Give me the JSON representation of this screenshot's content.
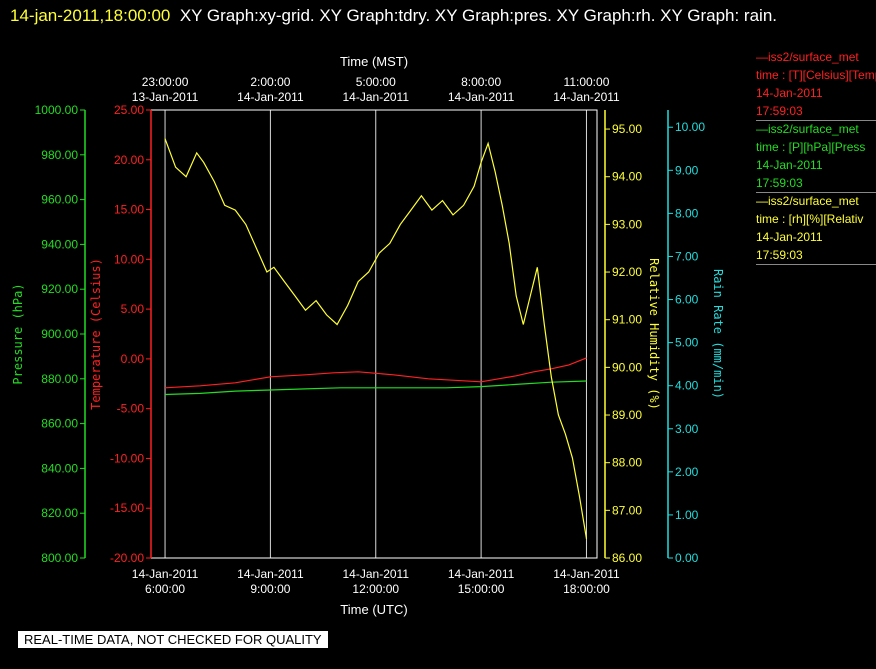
{
  "header": {
    "timestamp": "14-jan-2011,18:00:00",
    "graphs_text": "XY Graph:xy-grid.  XY Graph:tdry.  XY Graph:pres.  XY Graph:rh.  XY Graph: rain."
  },
  "colors": {
    "temperature": "#ff2020",
    "pressure": "#22dd22",
    "humidity": "#ffff33",
    "rain": "#22dddd",
    "grid": "#ffffff",
    "text": "#ffffff"
  },
  "legend": [
    {
      "source": "—iss2/surface_met",
      "line1": "time : [T][Celsius][Temp",
      "date": "14-Jan-2011",
      "time": "17:59:03",
      "color": "#ff2020"
    },
    {
      "source": "—iss2/surface_met",
      "line1": "time : [P][hPa][Press",
      "date": "14-Jan-2011",
      "time": "17:59:03",
      "color": "#22dd22"
    },
    {
      "source": "—iss2/surface_met",
      "line1": "time : [rh][%][Relativ",
      "date": "14-Jan-2011",
      "time": "17:59:03",
      "color": "#ffff33"
    }
  ],
  "footer": "REAL-TIME DATA, NOT CHECKED FOR QUALITY",
  "chart_data": {
    "type": "line",
    "x_range_utc_hours": [
      5.6,
      18.3
    ],
    "xlabel_bottom": "Time (UTC)",
    "xlabel_top": "Time (MST)",
    "x_ticks_bottom": [
      {
        "x": 6,
        "line1": "14-Jan-2011",
        "line2": "6:00:00"
      },
      {
        "x": 9,
        "line1": "14-Jan-2011",
        "line2": "9:00:00"
      },
      {
        "x": 12,
        "line1": "14-Jan-2011",
        "line2": "12:00:00"
      },
      {
        "x": 15,
        "line1": "14-Jan-2011",
        "line2": "15:00:00"
      },
      {
        "x": 18,
        "line1": "14-Jan-2011",
        "line2": "18:00:00"
      }
    ],
    "x_ticks_top": [
      {
        "x": 6,
        "line1": "23:00:00",
        "line2": "13-Jan-2011"
      },
      {
        "x": 9,
        "line1": "2:00:00",
        "line2": "14-Jan-2011"
      },
      {
        "x": 12,
        "line1": "5:00:00",
        "line2": "14-Jan-2011"
      },
      {
        "x": 15,
        "line1": "8:00:00",
        "line2": "14-Jan-2011"
      },
      {
        "x": 18,
        "line1": "11:00:00",
        "line2": "14-Jan-2011"
      }
    ],
    "axes": {
      "pressure": {
        "label": "Pressure (hPa)",
        "range": [
          800,
          1000
        ],
        "ticks": [
          "800.00",
          "820.00",
          "840.00",
          "860.00",
          "880.00",
          "900.00",
          "920.00",
          "940.00",
          "960.00",
          "980.00",
          "1000.00"
        ]
      },
      "temperature": {
        "label": "Temperature (Celsius)",
        "range": [
          -20,
          25
        ],
        "ticks": [
          "-20.00",
          "-15.00",
          "-10.00",
          "-5.00",
          "0.00",
          "5.00",
          "10.00",
          "15.00",
          "20.00",
          "25.00"
        ]
      },
      "humidity": {
        "label": "Relative Humidity (%)",
        "range": [
          86,
          95.4
        ],
        "ticks": [
          "86.00",
          "87.00",
          "88.00",
          "89.00",
          "90.00",
          "91.00",
          "92.00",
          "93.00",
          "94.00",
          "95.00"
        ]
      },
      "rain": {
        "label": "Rain Rate (mm/min)",
        "range": [
          0,
          10.4
        ],
        "ticks": [
          "0.00",
          "1.00",
          "2.00",
          "3.00",
          "4.00",
          "5.00",
          "6.00",
          "7.00",
          "8.00",
          "9.00",
          "10.00"
        ]
      }
    },
    "series": [
      {
        "name": "[T][Celsius]",
        "axis": "temperature",
        "x": [
          6.0,
          7.0,
          8.0,
          9.0,
          10.0,
          10.8,
          11.5,
          12.5,
          13.5,
          14.5,
          15.0,
          15.5,
          16.0,
          16.5,
          17.0,
          17.5,
          18.0
        ],
        "y": [
          -2.9,
          -2.7,
          -2.4,
          -1.8,
          -1.6,
          -1.4,
          -1.3,
          -1.6,
          -2.0,
          -2.2,
          -2.3,
          -2.0,
          -1.7,
          -1.3,
          -1.0,
          -0.6,
          0.1
        ]
      },
      {
        "name": "[P][hPa]",
        "axis": "pressure",
        "x": [
          6.0,
          7.0,
          8.0,
          9.0,
          10.0,
          11.0,
          12.0,
          13.0,
          14.0,
          15.0,
          16.0,
          17.0,
          18.0
        ],
        "y": [
          873.0,
          873.5,
          874.5,
          875.0,
          875.5,
          876.0,
          876.0,
          876.0,
          876.0,
          876.5,
          877.5,
          878.5,
          879.0
        ]
      },
      {
        "name": "[rh][%]",
        "axis": "humidity",
        "x": [
          6.0,
          6.3,
          6.6,
          6.9,
          7.1,
          7.4,
          7.7,
          8.0,
          8.3,
          8.6,
          8.9,
          9.1,
          9.4,
          9.7,
          10.0,
          10.3,
          10.6,
          10.9,
          11.2,
          11.5,
          11.8,
          12.1,
          12.4,
          12.7,
          13.0,
          13.3,
          13.6,
          13.9,
          14.2,
          14.5,
          14.8,
          15.0,
          15.2,
          15.4,
          15.6,
          15.8,
          16.0,
          16.2,
          16.4,
          16.6,
          16.8,
          17.0,
          17.2,
          17.4,
          17.6,
          17.8,
          18.0
        ],
        "y": [
          94.8,
          94.2,
          94.0,
          94.5,
          94.3,
          93.9,
          93.4,
          93.3,
          93.0,
          92.5,
          92.0,
          92.1,
          91.8,
          91.5,
          91.2,
          91.4,
          91.1,
          90.9,
          91.3,
          91.8,
          92.0,
          92.4,
          92.6,
          93.0,
          93.3,
          93.6,
          93.3,
          93.5,
          93.2,
          93.4,
          93.8,
          94.3,
          94.7,
          94.1,
          93.4,
          92.6,
          91.5,
          90.9,
          91.5,
          92.1,
          90.9,
          89.8,
          89.0,
          88.6,
          88.1,
          87.3,
          86.4
        ]
      }
    ]
  }
}
